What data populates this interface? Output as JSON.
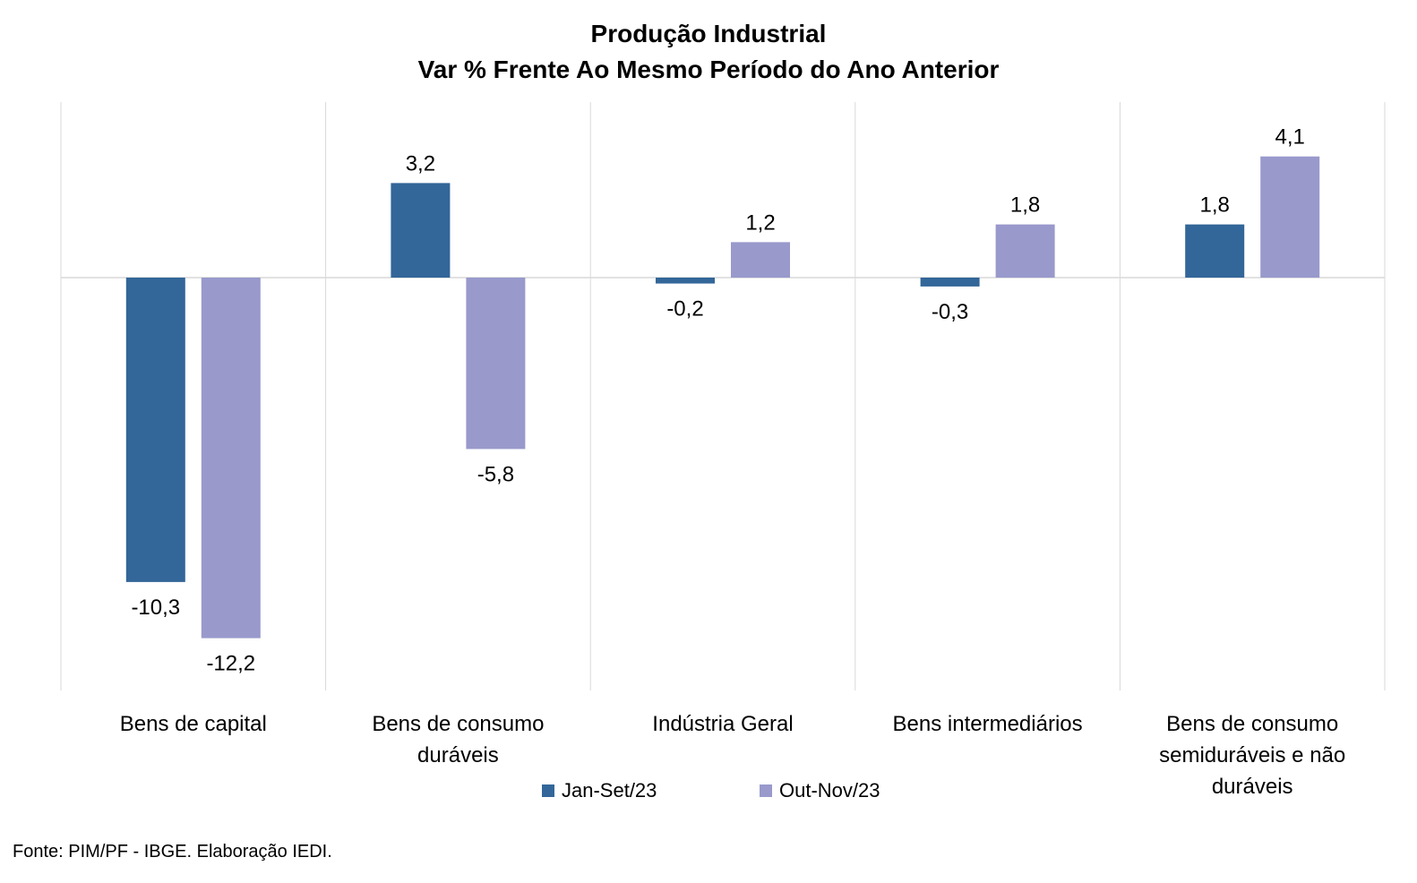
{
  "chart_data": {
    "type": "bar",
    "title": "Produção Industrial",
    "subtitle": "Var % Frente Ao Mesmo Período do Ano Anterior",
    "categories": [
      [
        "Bens de capital"
      ],
      [
        "Bens de consumo",
        "duráveis"
      ],
      [
        "Indústria Geral"
      ],
      [
        "Bens intermediários"
      ],
      [
        "Bens de consumo",
        "semiduráveis e não",
        "duráveis"
      ]
    ],
    "series": [
      {
        "name": "Jan-Set/23",
        "color": "#336699",
        "values": [
          -10.3,
          3.2,
          -0.2,
          -0.3,
          1.8
        ]
      },
      {
        "name": "Out-Nov/23",
        "color": "#9999CC",
        "values": [
          -12.2,
          -5.8,
          1.2,
          1.8,
          4.1
        ]
      }
    ],
    "value_labels": [
      [
        "-10,3",
        "3,2",
        "-0,2",
        "-0,3",
        "1,8"
      ],
      [
        "-12,2",
        "-5,8",
        "1,2",
        "1,8",
        "4,1"
      ]
    ],
    "ylim": [
      -14,
      6
    ],
    "grid": false,
    "legend_position": "bottom"
  },
  "source": "Fonte: PIM/PF - IBGE. Elaboração IEDI."
}
